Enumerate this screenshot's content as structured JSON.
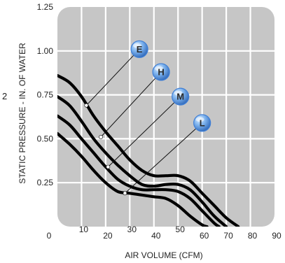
{
  "chart_data": {
    "type": "line",
    "title": "",
    "xlabel": "AIR VOLUME (CFM)",
    "ylabel": "STATIC PRESSURE - IN. OF WATER",
    "xlim": [
      0,
      90
    ],
    "ylim": [
      0,
      1.25
    ],
    "x_ticks": [
      0,
      10,
      20,
      30,
      40,
      50,
      60,
      70,
      80,
      90
    ],
    "x_tick_labels": [
      "0",
      "10",
      "20",
      "30",
      "40",
      "50",
      "60",
      "70",
      "80",
      "90"
    ],
    "y_ticks": [
      0.25,
      0.5,
      0.75,
      1.0,
      1.25
    ],
    "y_tick_labels": [
      "0.25",
      "0.50",
      "0.75",
      "1.00",
      "1.25"
    ],
    "stray_label": "2",
    "grid": true,
    "series": [
      {
        "label": "E",
        "badge_color": "#3f7fd6",
        "values": [
          [
            0,
            0.86
          ],
          [
            5,
            0.82
          ],
          [
            10,
            0.74
          ],
          [
            15,
            0.63
          ],
          [
            20,
            0.54
          ],
          [
            25,
            0.46
          ],
          [
            30,
            0.38
          ],
          [
            35,
            0.32
          ],
          [
            40,
            0.29
          ],
          [
            45,
            0.29
          ],
          [
            50,
            0.29
          ],
          [
            55,
            0.26
          ],
          [
            60,
            0.19
          ],
          [
            65,
            0.12
          ],
          [
            70,
            0.05
          ],
          [
            75,
            0.0
          ]
        ],
        "marker": [
          12,
          0.69
        ],
        "badge": [
          34,
          1.01
        ]
      },
      {
        "label": "H",
        "badge_color": "#3f7fd6",
        "values": [
          [
            0,
            0.74
          ],
          [
            5,
            0.69
          ],
          [
            10,
            0.6
          ],
          [
            15,
            0.5
          ],
          [
            20,
            0.42
          ],
          [
            25,
            0.35
          ],
          [
            30,
            0.29
          ],
          [
            35,
            0.24
          ],
          [
            40,
            0.23
          ],
          [
            45,
            0.24
          ],
          [
            50,
            0.24
          ],
          [
            55,
            0.21
          ],
          [
            60,
            0.14
          ],
          [
            65,
            0.06
          ],
          [
            70,
            0.0
          ]
        ],
        "marker": [
          18,
          0.51
        ],
        "badge": [
          43,
          0.88
        ]
      },
      {
        "label": "M",
        "badge_color": "#3f7fd6",
        "values": [
          [
            0,
            0.63
          ],
          [
            5,
            0.58
          ],
          [
            10,
            0.5
          ],
          [
            15,
            0.42
          ],
          [
            20,
            0.34
          ],
          [
            25,
            0.27
          ],
          [
            30,
            0.23
          ],
          [
            35,
            0.21
          ],
          [
            40,
            0.21
          ],
          [
            45,
            0.21
          ],
          [
            50,
            0.2
          ],
          [
            55,
            0.16
          ],
          [
            60,
            0.09
          ],
          [
            65,
            0.02
          ],
          [
            67,
            0.0
          ]
        ],
        "marker": [
          21,
          0.34
        ],
        "badge": [
          51,
          0.74
        ]
      },
      {
        "label": "L",
        "badge_color": "#3f7fd6",
        "values": [
          [
            0,
            0.53
          ],
          [
            5,
            0.47
          ],
          [
            10,
            0.4
          ],
          [
            15,
            0.32
          ],
          [
            20,
            0.25
          ],
          [
            25,
            0.2
          ],
          [
            30,
            0.19
          ],
          [
            35,
            0.18
          ],
          [
            40,
            0.17
          ],
          [
            45,
            0.16
          ],
          [
            50,
            0.12
          ],
          [
            55,
            0.06
          ],
          [
            60,
            0.01
          ],
          [
            62,
            0.0
          ]
        ],
        "marker": [
          28,
          0.19
        ],
        "badge": [
          60,
          0.59
        ]
      }
    ]
  }
}
